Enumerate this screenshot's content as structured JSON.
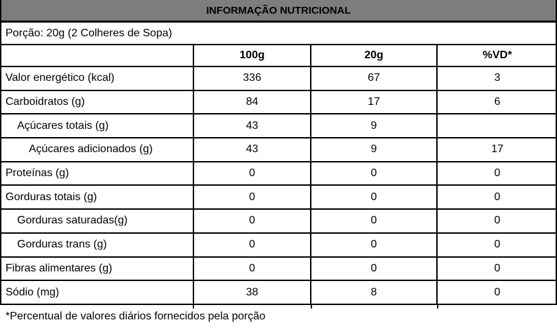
{
  "title": "INFORMAÇÃO NUTRICIONAL",
  "serving_info": "Porção: 20g (2 Colheres de Sopa)",
  "table": {
    "columns": [
      "",
      "100g",
      "20g",
      "%VD*"
    ],
    "rows": [
      {
        "label": "Valor energético (kcal)",
        "indent": 0,
        "per_100g": "336",
        "per_20g": "67",
        "pct_vd": "3"
      },
      {
        "label": "Carboidratos (g)",
        "indent": 0,
        "per_100g": "84",
        "per_20g": "17",
        "pct_vd": "6"
      },
      {
        "label": "Açúcares totais (g)",
        "indent": 1,
        "per_100g": "43",
        "per_20g": "9",
        "pct_vd": ""
      },
      {
        "label": "Açúcares adicionados (g)",
        "indent": 2,
        "per_100g": "43",
        "per_20g": "9",
        "pct_vd": "17"
      },
      {
        "label": "Proteínas (g)",
        "indent": 0,
        "per_100g": "0",
        "per_20g": "0",
        "pct_vd": "0"
      },
      {
        "label": "Gorduras totais (g)",
        "indent": 0,
        "per_100g": "0",
        "per_20g": "0",
        "pct_vd": "0"
      },
      {
        "label": "Gorduras saturadas(g)",
        "indent": 1,
        "per_100g": "0",
        "per_20g": "0",
        "pct_vd": "0"
      },
      {
        "label": "Gorduras trans (g)",
        "indent": 1,
        "per_100g": "0",
        "per_20g": "0",
        "pct_vd": "0"
      },
      {
        "label": "Fibras alimentares (g)",
        "indent": 0,
        "per_100g": "0",
        "per_20g": "0",
        "pct_vd": "0"
      },
      {
        "label": "Sódio (mg)",
        "indent": 0,
        "per_100g": "38",
        "per_20g": "8",
        "pct_vd": "0"
      }
    ]
  },
  "footnote": "*Percentual de valores diários fornecidos pela porção",
  "colors": {
    "title_bg": "#7d7d7d",
    "border": "#000000",
    "text": "#000000",
    "background": "#ffffff"
  }
}
